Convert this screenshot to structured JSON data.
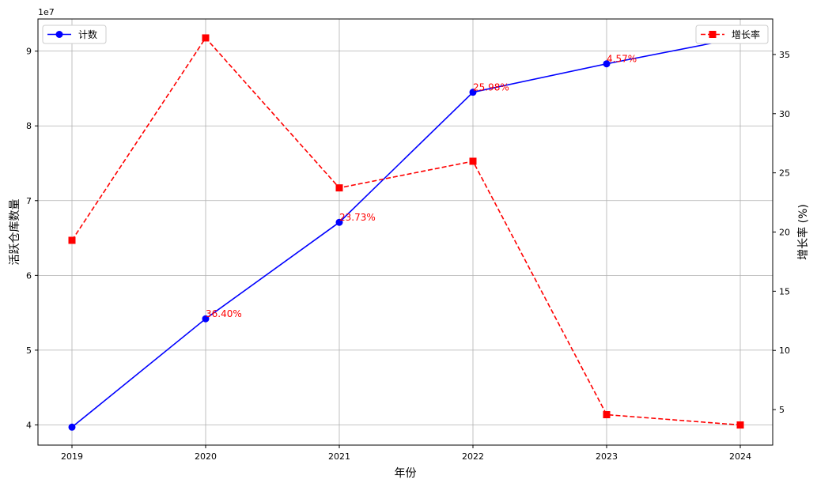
{
  "chart_data": {
    "type": "line",
    "x": [
      "2019",
      "2020",
      "2021",
      "2022",
      "2023",
      "2024"
    ],
    "xlabel": "年份",
    "ylabel_left": "活跃仓库数量",
    "ylabel_right": "增长率 (%)",
    "left_axis_scale_label": "1e7",
    "grid": true,
    "ylim_left": [
      3.73,
      9.43
    ],
    "ylim_right": [
      2.0,
      38.0
    ],
    "yticks_left": [
      4,
      5,
      6,
      7,
      8,
      9
    ],
    "yticks_right": [
      5,
      10,
      15,
      20,
      25,
      30,
      35
    ],
    "series": [
      {
        "name": "计数",
        "axis": "left",
        "color": "#0000ff",
        "marker": "circle",
        "linestyle": "solid",
        "values": [
          3.97,
          5.42,
          6.71,
          8.45,
          8.83,
          9.18
        ],
        "legend_position": "top-left"
      },
      {
        "name": "增长率",
        "axis": "right",
        "color": "#ff0000",
        "marker": "square",
        "linestyle": "dashed",
        "values": [
          19.3,
          36.4,
          23.73,
          25.98,
          4.57,
          3.7
        ],
        "legend_position": "top-right"
      }
    ],
    "annotations": [
      {
        "x": "2020",
        "text": "36.40%"
      },
      {
        "x": "2021",
        "text": "23.73%"
      },
      {
        "x": "2022",
        "text": "25.98%"
      },
      {
        "x": "2023",
        "text": "4.57%"
      }
    ]
  }
}
